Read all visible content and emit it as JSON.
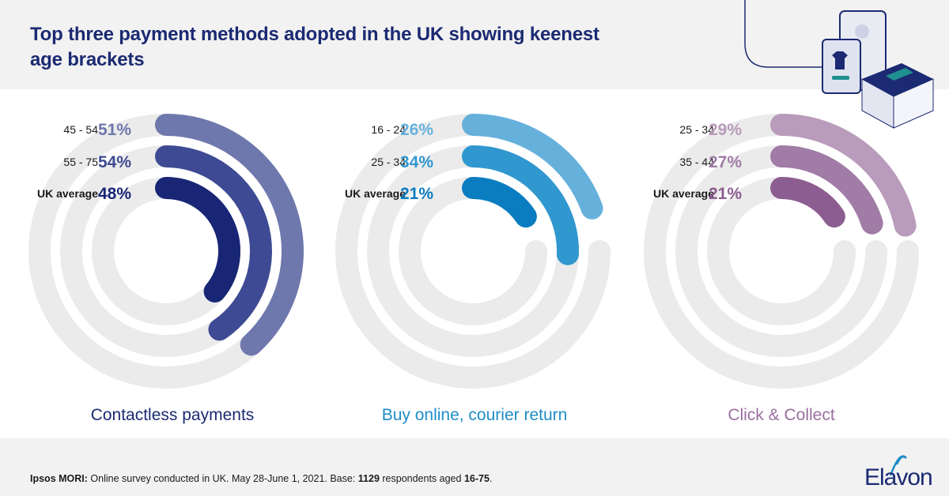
{
  "title": "Top three payment methods adopted in the UK showing keenest age brackets",
  "source": {
    "lead": "Ipsos MORI:",
    "text1": " Online survey conducted in UK. May 28-June 1, 2021. Base: ",
    "count": "1129",
    "text2": " respondents aged ",
    "ages": "16-75",
    "end": "."
  },
  "brand": "Elavon",
  "colors": {
    "track": "#ebebeb",
    "contactless": [
      "#6f78ad",
      "#3e4a93",
      "#182675"
    ],
    "courier": [
      "#66b1dc",
      "#3097cf",
      "#0a7dc1"
    ],
    "click": [
      "#b99bbb",
      "#a07ca6",
      "#8c5d90"
    ],
    "contactless_label": "#1b2a72",
    "courier_label": "#1e8dc8",
    "click_label": "#9a6f9f"
  },
  "chart_data": [
    {
      "type": "radial-bar",
      "label": "Contactless payments",
      "max": 100,
      "series": [
        {
          "name": "45 - 54",
          "value": 51,
          "display": "51%"
        },
        {
          "name": "55 - 75",
          "value": 54,
          "display": "54%"
        },
        {
          "name": "UK average",
          "value": 48,
          "display": "48%"
        }
      ]
    },
    {
      "type": "radial-bar",
      "label": "Buy online, courier return",
      "max": 100,
      "series": [
        {
          "name": "16 - 24",
          "value": 26,
          "display": "26%"
        },
        {
          "name": "25 - 34",
          "value": 34,
          "display": "34%"
        },
        {
          "name": "UK average",
          "value": 21,
          "display": "21%"
        }
      ]
    },
    {
      "type": "radial-bar",
      "label": "Click & Collect",
      "max": 100,
      "series": [
        {
          "name": "25 - 34",
          "value": 29,
          "display": "29%"
        },
        {
          "name": "35 - 44",
          "value": 27,
          "display": "27%"
        },
        {
          "name": "UK average",
          "value": 21,
          "display": "21%"
        }
      ]
    }
  ]
}
